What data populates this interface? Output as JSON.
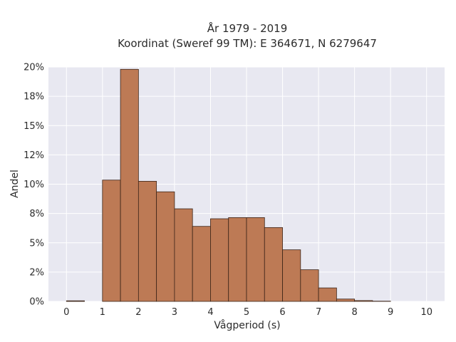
{
  "chart_data": {
    "type": "bar",
    "title_line1": "År 1979 - 2019",
    "title_line2": "Koordinat (Sweref 99 TM): E 364671, N 6279647",
    "xlabel": "Vågperiod (s)",
    "ylabel": "Andel",
    "bin_width": 0.5,
    "bins_start": [
      0,
      0.5,
      1,
      1.5,
      2,
      2.5,
      3,
      3.5,
      4,
      4.5,
      5,
      5.5,
      6,
      6.5,
      7,
      7.5,
      8,
      8.5,
      9,
      9.5
    ],
    "values": [
      0.0005,
      0,
      0.1035,
      0.198,
      0.1025,
      0.0935,
      0.079,
      0.064,
      0.0705,
      0.0715,
      0.0715,
      0.063,
      0.044,
      0.027,
      0.0115,
      0.002,
      0.0007,
      0.0002,
      0,
      0
    ],
    "xlim": [
      -0.5,
      10.5
    ],
    "ylim": [
      0,
      0.2
    ],
    "x_ticks": [
      0,
      1,
      2,
      3,
      4,
      5,
      6,
      7,
      8,
      9,
      10
    ],
    "x_tick_labels": [
      "0",
      "1",
      "2",
      "3",
      "4",
      "5",
      "6",
      "7",
      "8",
      "9",
      "10"
    ],
    "y_ticks": [
      0,
      0.025,
      0.05,
      0.075,
      0.1,
      0.125,
      0.15,
      0.175,
      0.2
    ],
    "y_tick_labels": [
      "0%",
      "2%",
      "5%",
      "8%",
      "10%",
      "12%",
      "15%",
      "18%",
      "20%"
    ],
    "grid": true,
    "colors": {
      "bar_fill": "#bd7a55",
      "bar_stroke": "#3b2418",
      "plot_background": "#e8e8f1",
      "grid": "#ffffff"
    }
  }
}
